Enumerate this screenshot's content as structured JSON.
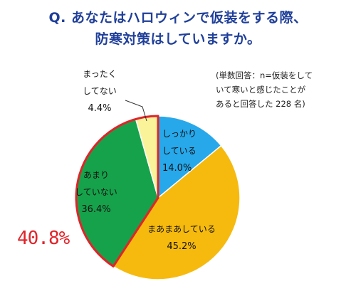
{
  "question": {
    "line1": "Q. あなたはハロウィンで仮装をする際、",
    "line2": "防寒対策はしていますか。"
  },
  "note": {
    "line1": "(単数回答：n=仮装をして",
    "line2": "いて寒いと感じたことが",
    "line3": "あると回答した 228 名)"
  },
  "highlight_total": "40.8%",
  "colors": {
    "title": "#1f3f9a",
    "highlight": "#e0242a",
    "shikkari": "#27a8ea",
    "maamaa": "#f6ba0e",
    "amari": "#16a24b",
    "mattaku": "#fbf39a"
  },
  "chart_data": {
    "type": "pie",
    "start": "12 o'clock",
    "direction": "clockwise",
    "slices": [
      {
        "label": [
          "しっかり",
          "している"
        ],
        "value": 14.0,
        "value_label": "14.0%",
        "color": "#27a8ea"
      },
      {
        "label": [
          "まあまあしている"
        ],
        "value": 45.2,
        "value_label": "45.2%",
        "color": "#f6ba0e"
      },
      {
        "label": [
          "あまり",
          "していない"
        ],
        "value": 36.4,
        "value_label": "36.4%",
        "color": "#16a24b",
        "highlighted": true
      },
      {
        "label": [
          "まったく",
          "してない"
        ],
        "value": 4.4,
        "value_label": "4.4%",
        "color": "#fbf39a",
        "highlighted": true
      }
    ],
    "highlight_group_total": "40.8%"
  }
}
